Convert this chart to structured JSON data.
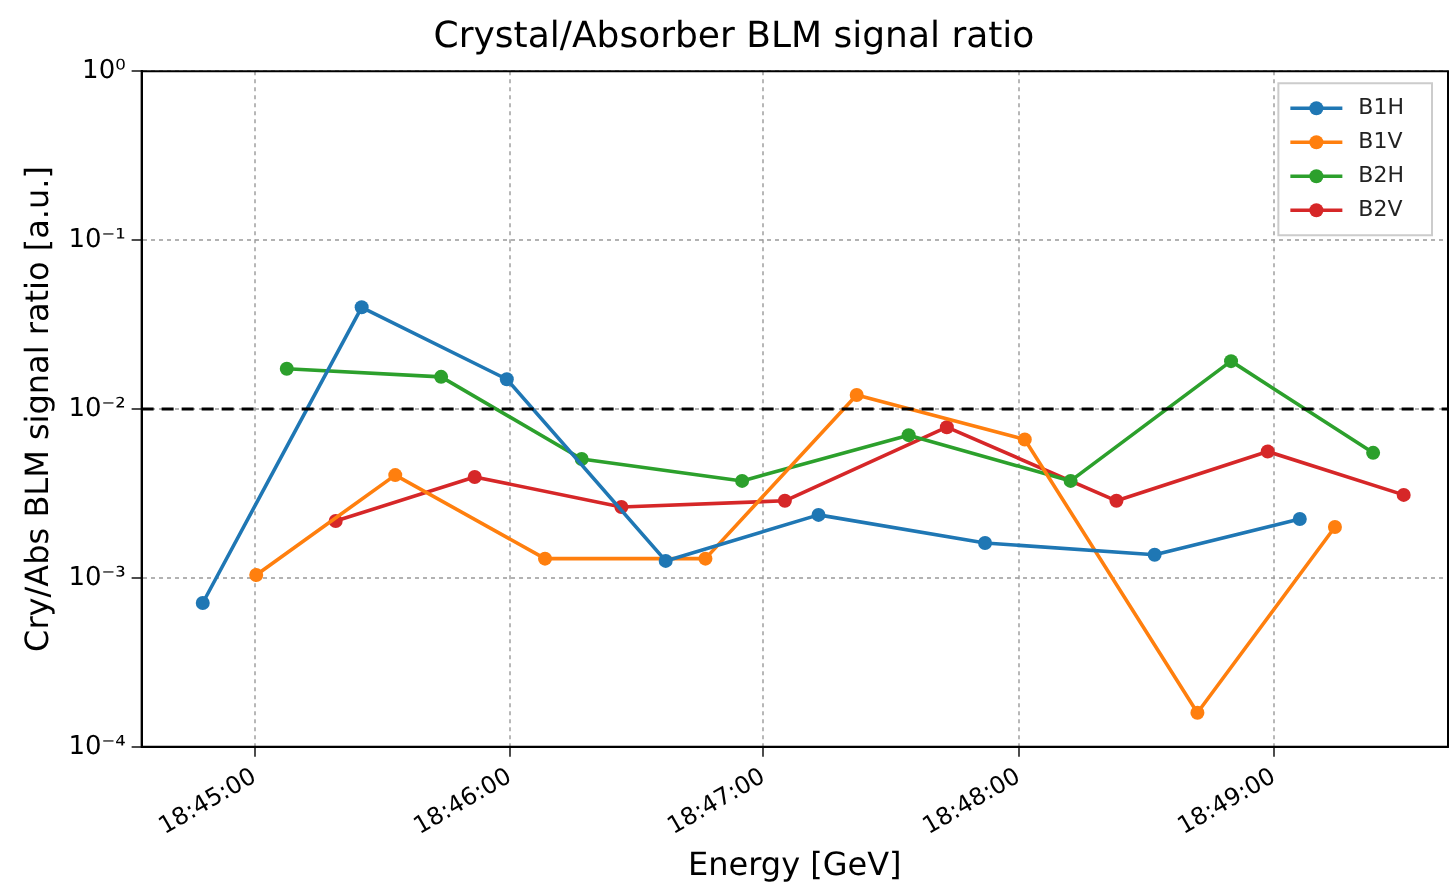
{
  "chart_data": {
    "type": "line",
    "title": "Crystal/Absorber BLM signal ratio",
    "xlabel": "Energy [GeV]",
    "ylabel": "Cry/Abs BLM signal ratio [a.u.]",
    "log": "y",
    "grid": true,
    "legend": "top right",
    "marker": "circle",
    "line_style": "solid",
    "xlim": [
      18.7426,
      18.8281
    ],
    "xticks": [
      {
        "value": 18.75,
        "label": "18:45:00"
      },
      {
        "value": 18.7667,
        "label": "18:46:00"
      },
      {
        "value": 18.7833,
        "label": "18:47:00"
      },
      {
        "value": 18.8,
        "label": "18:48:00"
      },
      {
        "value": 18.8167,
        "label": "18:49:00"
      }
    ],
    "ylim": [
      0.0001,
      1
    ],
    "yticks": [
      {
        "value": 0.0001,
        "label": "10⁻⁴"
      },
      {
        "value": 0.001,
        "label": "10⁻³"
      },
      {
        "value": 0.01,
        "label": "10⁻²"
      },
      {
        "value": 0.1,
        "label": "10⁻¹"
      },
      {
        "value": 1,
        "label": "10⁰"
      }
    ],
    "ref_lines": [
      {
        "axis": "y",
        "value": 0.01,
        "color": "#000000",
        "line_style": "dashed"
      }
    ],
    "series": [
      {
        "name": "B1H",
        "color": "#1f77b4",
        "x": [
          18.7466,
          18.757,
          18.7665,
          18.7769,
          18.7869,
          18.7978,
          18.8089,
          18.8184
        ],
        "values": [
          0.00071,
          0.04,
          0.015,
          0.00126,
          0.00236,
          0.00161,
          0.00137,
          0.00223
        ]
      },
      {
        "name": "B1V",
        "color": "#ff7f0e",
        "x": [
          18.7501,
          18.7592,
          18.769,
          18.7795,
          18.7894,
          18.8004,
          18.8117,
          18.8207
        ],
        "values": [
          0.00104,
          0.00406,
          0.0013,
          0.0013,
          0.0121,
          0.0066,
          0.000159,
          0.002
        ]
      },
      {
        "name": "B2H",
        "color": "#2ca02c",
        "x": [
          18.7521,
          18.7622,
          18.7714,
          18.7819,
          18.7928,
          18.8034,
          18.8139,
          18.8232
        ],
        "values": [
          0.0173,
          0.0155,
          0.00506,
          0.00375,
          0.007,
          0.00375,
          0.0192,
          0.0055
        ]
      },
      {
        "name": "B2V",
        "color": "#d62728",
        "x": [
          18.7553,
          18.7644,
          18.774,
          18.7847,
          18.7953,
          18.8064,
          18.8163,
          18.8252
        ],
        "values": [
          0.00217,
          0.00396,
          0.00263,
          0.00286,
          0.0078,
          0.00286,
          0.0056,
          0.0031
        ]
      }
    ]
  }
}
